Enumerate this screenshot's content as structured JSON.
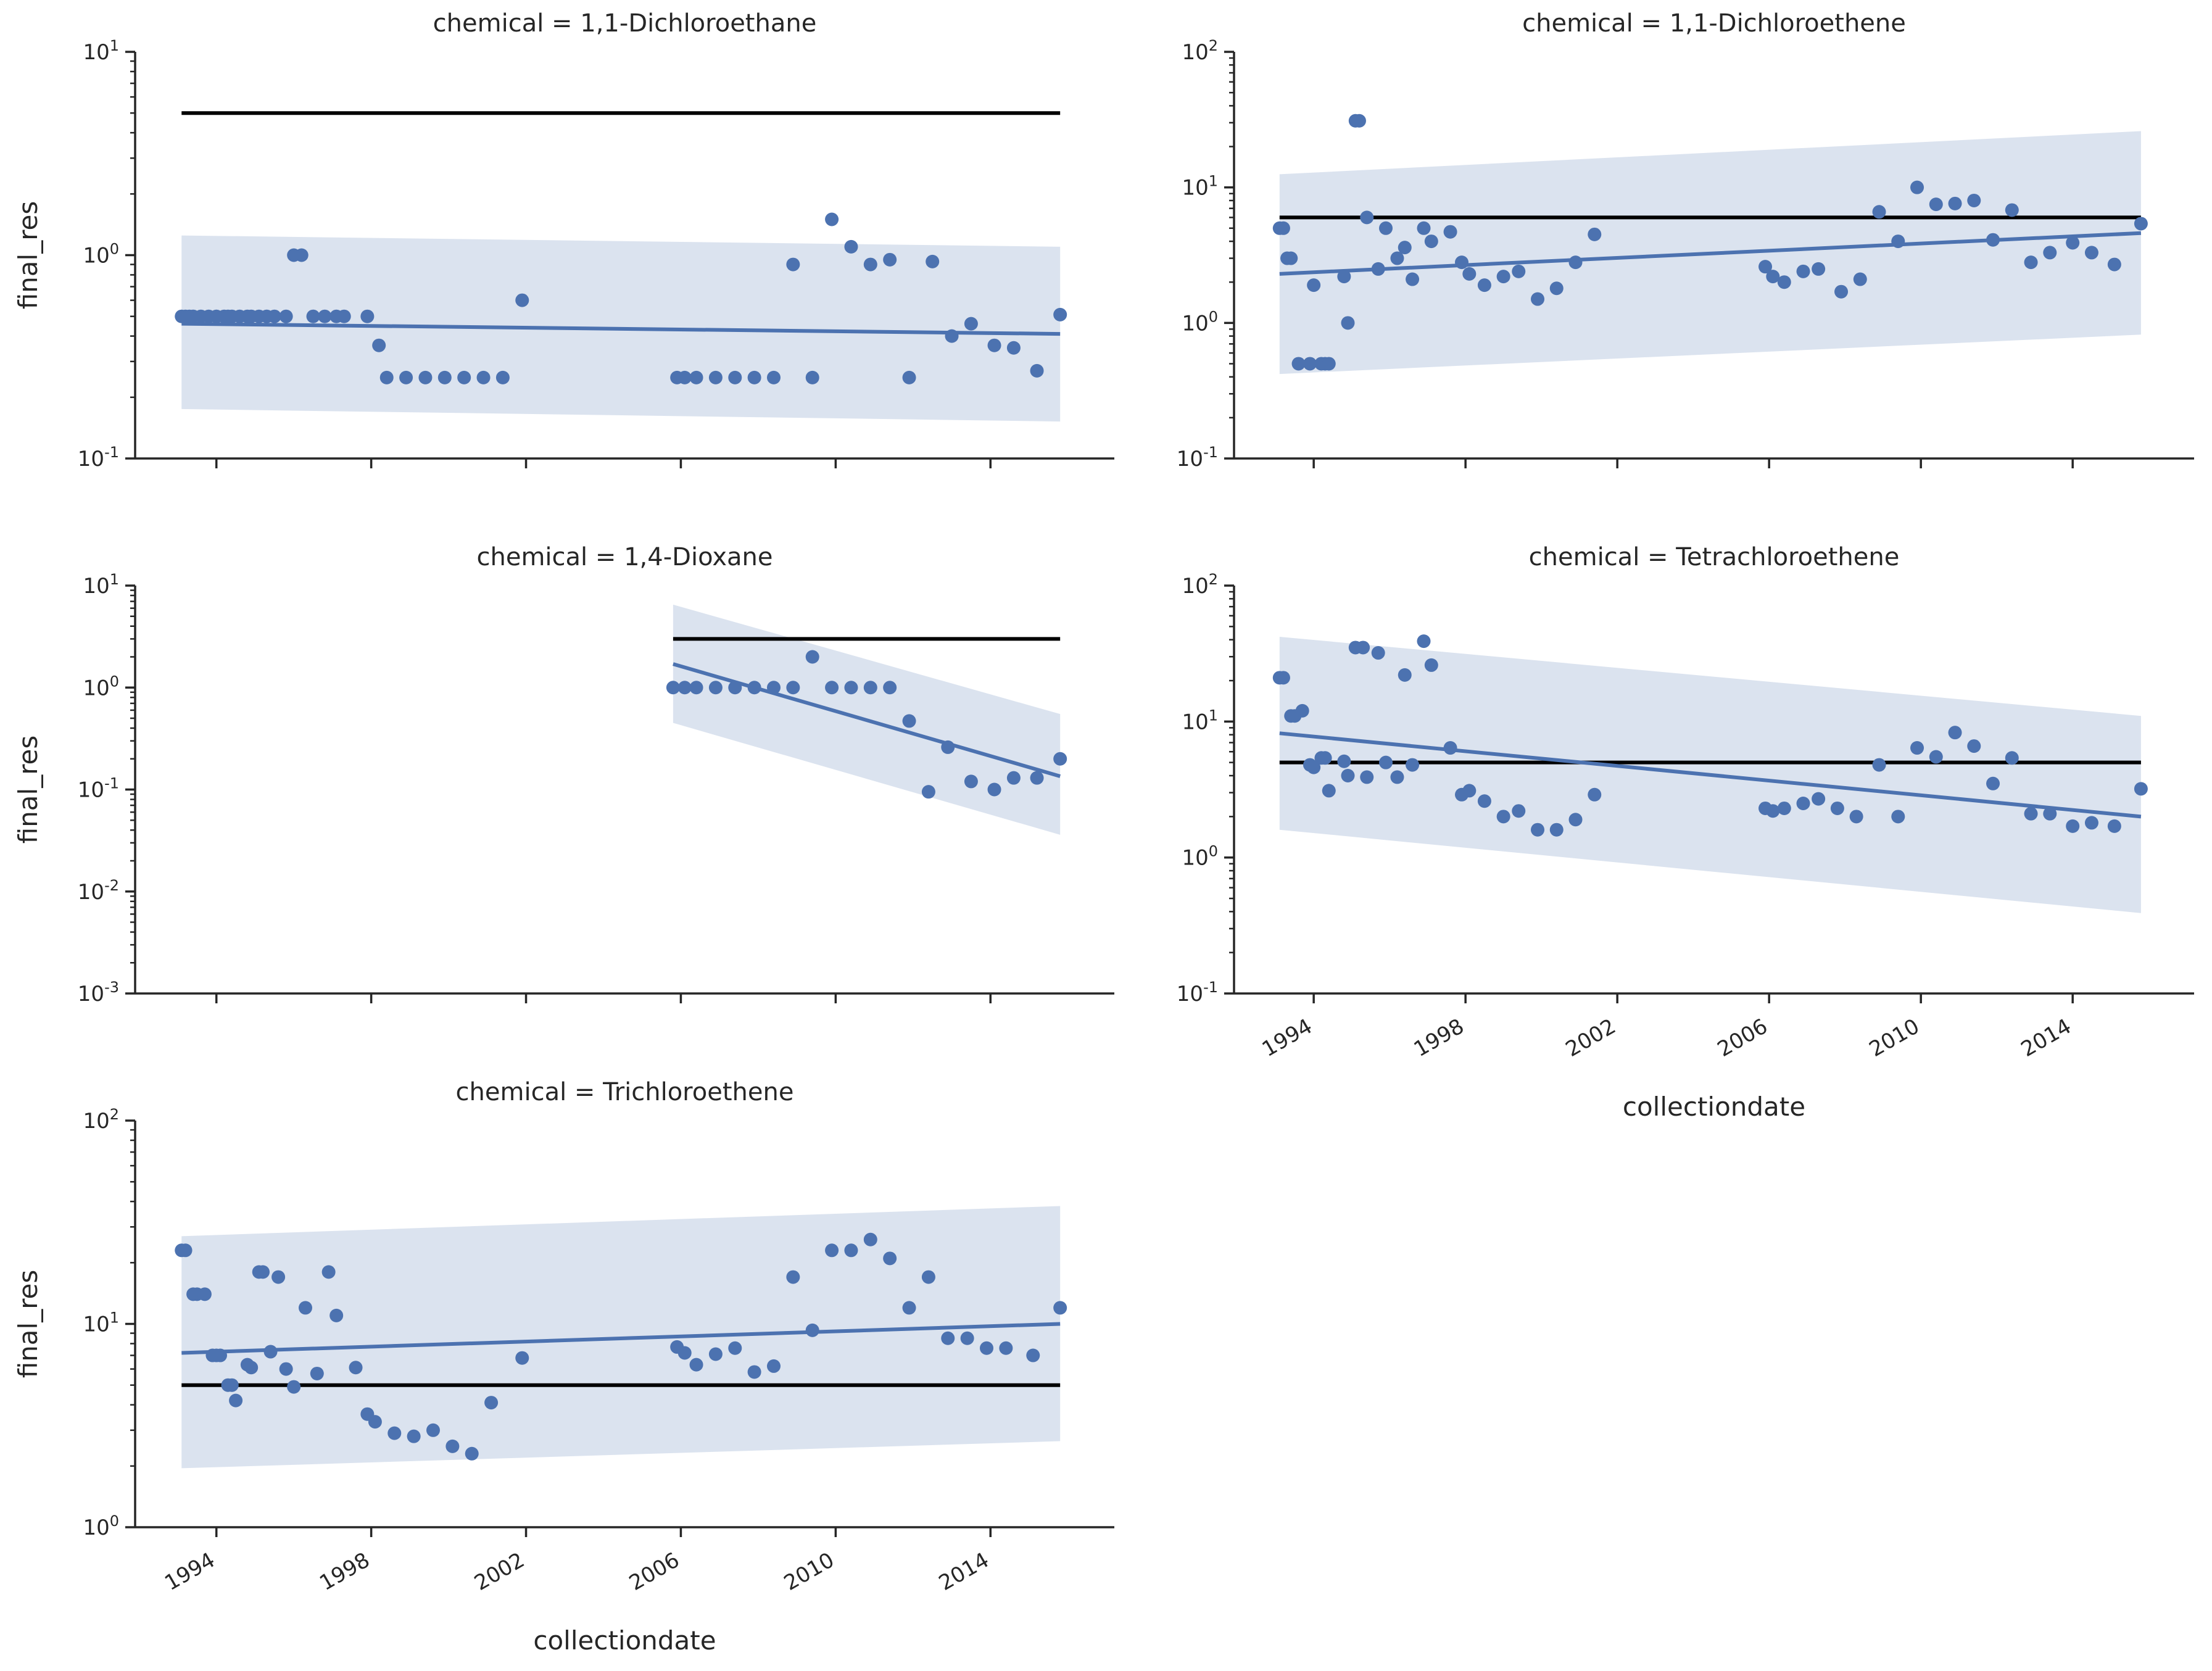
{
  "chart_data": {
    "type": "scatter",
    "layout": "facet-grid",
    "x_label": "collectiondate",
    "y_label": "final_res",
    "x_ticks": [
      "1994",
      "1998",
      "2002",
      "2006",
      "2010",
      "2014"
    ],
    "y_scale": "log",
    "colors": {
      "points": "#4c72b0",
      "band": "#4c72b0",
      "reference_line": "#000000"
    },
    "facets": [
      {
        "title": "chemical = 1,1-Dichloroethane",
        "ylim_exp": [
          -1,
          1
        ],
        "reference_line": 5,
        "regression": {
          "start": 0.46,
          "end": 0.41
        },
        "ci_band": {
          "lower": [
            0.175,
            0.152
          ],
          "upper": [
            1.25,
            1.1
          ]
        },
        "points": [
          [
            1993.1,
            0.5
          ],
          [
            1993.2,
            0.5
          ],
          [
            1993.3,
            0.5
          ],
          [
            1993.4,
            0.5
          ],
          [
            1993.6,
            0.5
          ],
          [
            1993.8,
            0.5
          ],
          [
            1994.0,
            0.5
          ],
          [
            1994.2,
            0.5
          ],
          [
            1994.3,
            0.5
          ],
          [
            1994.4,
            0.5
          ],
          [
            1994.6,
            0.5
          ],
          [
            1994.8,
            0.5
          ],
          [
            1994.9,
            0.5
          ],
          [
            1995.1,
            0.5
          ],
          [
            1995.3,
            0.5
          ],
          [
            1995.5,
            0.5
          ],
          [
            1995.8,
            0.5
          ],
          [
            1996.0,
            1.0
          ],
          [
            1996.2,
            1.0
          ],
          [
            1996.5,
            0.5
          ],
          [
            1996.8,
            0.5
          ],
          [
            1997.1,
            0.5
          ],
          [
            1997.3,
            0.5
          ],
          [
            1997.9,
            0.5
          ],
          [
            1998.2,
            0.36
          ],
          [
            1998.4,
            0.25
          ],
          [
            1998.9,
            0.25
          ],
          [
            1999.4,
            0.25
          ],
          [
            1999.9,
            0.25
          ],
          [
            2000.4,
            0.25
          ],
          [
            2000.9,
            0.25
          ],
          [
            2001.4,
            0.25
          ],
          [
            2001.9,
            0.6
          ],
          [
            2005.9,
            0.25
          ],
          [
            2006.1,
            0.25
          ],
          [
            2006.4,
            0.25
          ],
          [
            2006.9,
            0.25
          ],
          [
            2007.4,
            0.25
          ],
          [
            2007.9,
            0.25
          ],
          [
            2008.4,
            0.25
          ],
          [
            2008.9,
            0.9
          ],
          [
            2009.4,
            0.25
          ],
          [
            2009.9,
            1.5
          ],
          [
            2010.4,
            1.1
          ],
          [
            2010.9,
            0.9
          ],
          [
            2011.4,
            0.95
          ],
          [
            2011.9,
            0.25
          ],
          [
            2012.5,
            0.93
          ],
          [
            2013.0,
            0.4
          ],
          [
            2013.5,
            0.46
          ],
          [
            2014.1,
            0.36
          ],
          [
            2014.6,
            0.35
          ],
          [
            2015.2,
            0.27
          ],
          [
            2015.8,
            0.51
          ]
        ]
      },
      {
        "title": "chemical = 1,1-Dichloroethene",
        "ylim_exp": [
          -1,
          2
        ],
        "reference_line": 6,
        "regression": {
          "start": 2.3,
          "end": 4.6
        },
        "ci_band": {
          "lower": [
            0.42,
            0.82
          ],
          "upper": [
            12.5,
            26
          ]
        },
        "points": [
          [
            1993.1,
            5
          ],
          [
            1993.2,
            5
          ],
          [
            1993.3,
            3
          ],
          [
            1993.4,
            3
          ],
          [
            1993.6,
            0.5
          ],
          [
            1993.9,
            0.5
          ],
          [
            1994.0,
            1.9
          ],
          [
            1994.2,
            0.5
          ],
          [
            1994.3,
            0.5
          ],
          [
            1994.4,
            0.5
          ],
          [
            1994.8,
            2.2
          ],
          [
            1994.9,
            1.0
          ],
          [
            1995.1,
            31
          ],
          [
            1995.2,
            31
          ],
          [
            1995.4,
            6
          ],
          [
            1995.7,
            2.5
          ],
          [
            1995.9,
            5
          ],
          [
            1996.2,
            3
          ],
          [
            1996.4,
            3.6
          ],
          [
            1996.6,
            2.1
          ],
          [
            1996.9,
            5
          ],
          [
            1997.1,
            4
          ],
          [
            1997.6,
            4.7
          ],
          [
            1997.9,
            2.8
          ],
          [
            1998.1,
            2.3
          ],
          [
            1998.5,
            1.9
          ],
          [
            1999.0,
            2.2
          ],
          [
            1999.4,
            2.4
          ],
          [
            1999.9,
            1.5
          ],
          [
            2000.4,
            1.8
          ],
          [
            2000.9,
            2.8
          ],
          [
            2001.4,
            4.5
          ],
          [
            2005.9,
            2.6
          ],
          [
            2006.1,
            2.2
          ],
          [
            2006.4,
            2.0
          ],
          [
            2006.9,
            2.4
          ],
          [
            2007.3,
            2.5
          ],
          [
            2007.9,
            1.7
          ],
          [
            2008.4,
            2.1
          ],
          [
            2008.9,
            6.6
          ],
          [
            2009.4,
            4.0
          ],
          [
            2009.9,
            10
          ],
          [
            2010.4,
            7.5
          ],
          [
            2010.9,
            7.6
          ],
          [
            2011.4,
            8
          ],
          [
            2011.9,
            4.1
          ],
          [
            2012.4,
            6.8
          ],
          [
            2012.9,
            2.8
          ],
          [
            2013.4,
            3.3
          ],
          [
            2014.0,
            3.9
          ],
          [
            2014.5,
            3.3
          ],
          [
            2015.1,
            2.7
          ],
          [
            2015.8,
            5.4
          ]
        ]
      },
      {
        "title": "chemical = 1,4-Dioxane",
        "ylim_exp": [
          -3,
          1
        ],
        "reference_line": 3,
        "regression": {
          "start": 1.7,
          "end": 0.135
        },
        "ci_band": {
          "lower": [
            0.45,
            0.036
          ],
          "upper": [
            6.5,
            0.55
          ]
        },
        "points": [
          [
            2005.8,
            1
          ],
          [
            2006.1,
            1
          ],
          [
            2006.4,
            1
          ],
          [
            2006.9,
            1
          ],
          [
            2007.4,
            1
          ],
          [
            2007.9,
            1
          ],
          [
            2008.4,
            1
          ],
          [
            2008.9,
            1
          ],
          [
            2009.4,
            2
          ],
          [
            2009.9,
            1
          ],
          [
            2010.4,
            1
          ],
          [
            2010.9,
            1
          ],
          [
            2011.4,
            1
          ],
          [
            2011.9,
            0.47
          ],
          [
            2012.4,
            0.095
          ],
          [
            2012.9,
            0.26
          ],
          [
            2013.5,
            0.12
          ],
          [
            2014.1,
            0.1
          ],
          [
            2014.6,
            0.13
          ],
          [
            2015.2,
            0.13
          ],
          [
            2015.8,
            0.2
          ]
        ]
      },
      {
        "title": "chemical = Tetrachloroethene",
        "ylim_exp": [
          -1,
          2
        ],
        "reference_line": 5,
        "regression": {
          "start": 8.2,
          "end": 2.0
        },
        "ci_band": {
          "lower": [
            1.6,
            0.39
          ],
          "upper": [
            42,
            11
          ]
        },
        "points": [
          [
            1993.1,
            21
          ],
          [
            1993.2,
            21
          ],
          [
            1993.4,
            11
          ],
          [
            1993.5,
            11
          ],
          [
            1993.7,
            12
          ],
          [
            1993.9,
            4.8
          ],
          [
            1994.0,
            4.6
          ],
          [
            1994.2,
            5.4
          ],
          [
            1994.3,
            5.4
          ],
          [
            1994.4,
            3.1
          ],
          [
            1994.8,
            5.1
          ],
          [
            1994.9,
            4.0
          ],
          [
            1995.1,
            35
          ],
          [
            1995.3,
            35
          ],
          [
            1995.4,
            3.9
          ],
          [
            1995.7,
            32
          ],
          [
            1995.9,
            5.0
          ],
          [
            1996.2,
            3.9
          ],
          [
            1996.4,
            22
          ],
          [
            1996.6,
            4.8
          ],
          [
            1996.9,
            39
          ],
          [
            1997.1,
            26
          ],
          [
            1997.6,
            6.4
          ],
          [
            1997.9,
            2.9
          ],
          [
            1998.1,
            3.1
          ],
          [
            1998.5,
            2.6
          ],
          [
            1999.0,
            2.0
          ],
          [
            1999.4,
            2.2
          ],
          [
            1999.9,
            1.6
          ],
          [
            2000.4,
            1.6
          ],
          [
            2000.9,
            1.9
          ],
          [
            2001.4,
            2.9
          ],
          [
            2005.9,
            2.3
          ],
          [
            2006.1,
            2.2
          ],
          [
            2006.4,
            2.3
          ],
          [
            2006.9,
            2.5
          ],
          [
            2007.3,
            2.7
          ],
          [
            2007.8,
            2.3
          ],
          [
            2008.3,
            2.0
          ],
          [
            2008.9,
            4.8
          ],
          [
            2009.4,
            2.0
          ],
          [
            2009.9,
            6.4
          ],
          [
            2010.4,
            5.5
          ],
          [
            2010.9,
            8.3
          ],
          [
            2011.4,
            6.6
          ],
          [
            2011.9,
            3.5
          ],
          [
            2012.4,
            5.4
          ],
          [
            2012.9,
            2.1
          ],
          [
            2013.4,
            2.1
          ],
          [
            2014.0,
            1.7
          ],
          [
            2014.5,
            1.8
          ],
          [
            2015.1,
            1.7
          ],
          [
            2015.8,
            3.2
          ]
        ]
      },
      {
        "title": "chemical = Trichloroethene",
        "ylim_exp": [
          0,
          2
        ],
        "reference_line": 5,
        "regression": {
          "start": 7.2,
          "end": 10
        },
        "ci_band": {
          "lower": [
            1.95,
            2.65
          ],
          "upper": [
            27,
            38
          ]
        },
        "points": [
          [
            1993.1,
            23
          ],
          [
            1993.2,
            23
          ],
          [
            1993.4,
            14
          ],
          [
            1993.5,
            14
          ],
          [
            1993.7,
            14
          ],
          [
            1993.9,
            7
          ],
          [
            1994.0,
            7
          ],
          [
            1994.1,
            7
          ],
          [
            1994.3,
            5
          ],
          [
            1994.4,
            5
          ],
          [
            1994.5,
            4.2
          ],
          [
            1994.8,
            6.3
          ],
          [
            1994.9,
            6.1
          ],
          [
            1995.1,
            18
          ],
          [
            1995.2,
            18
          ],
          [
            1995.4,
            7.3
          ],
          [
            1995.6,
            17
          ],
          [
            1995.8,
            6.0
          ],
          [
            1996.0,
            4.9
          ],
          [
            1996.3,
            12
          ],
          [
            1996.6,
            5.7
          ],
          [
            1996.9,
            18
          ],
          [
            1997.1,
            11
          ],
          [
            1997.6,
            6.1
          ],
          [
            1997.9,
            3.6
          ],
          [
            1998.1,
            3.3
          ],
          [
            1998.6,
            2.9
          ],
          [
            1999.1,
            2.8
          ],
          [
            1999.6,
            3.0
          ],
          [
            2000.1,
            2.5
          ],
          [
            2000.6,
            2.3
          ],
          [
            2001.1,
            4.1
          ],
          [
            2001.9,
            6.8
          ],
          [
            2005.9,
            7.7
          ],
          [
            2006.1,
            7.2
          ],
          [
            2006.4,
            6.3
          ],
          [
            2006.9,
            7.1
          ],
          [
            2007.4,
            7.6
          ],
          [
            2007.9,
            5.8
          ],
          [
            2008.4,
            6.2
          ],
          [
            2008.9,
            17
          ],
          [
            2009.4,
            9.3
          ],
          [
            2009.9,
            23
          ],
          [
            2010.4,
            23
          ],
          [
            2010.9,
            26
          ],
          [
            2011.4,
            21
          ],
          [
            2011.9,
            12
          ],
          [
            2012.4,
            17
          ],
          [
            2012.9,
            8.5
          ],
          [
            2013.4,
            8.5
          ],
          [
            2013.9,
            7.6
          ],
          [
            2014.4,
            7.6
          ],
          [
            2015.1,
            7.0
          ],
          [
            2015.8,
            12
          ]
        ]
      }
    ]
  }
}
